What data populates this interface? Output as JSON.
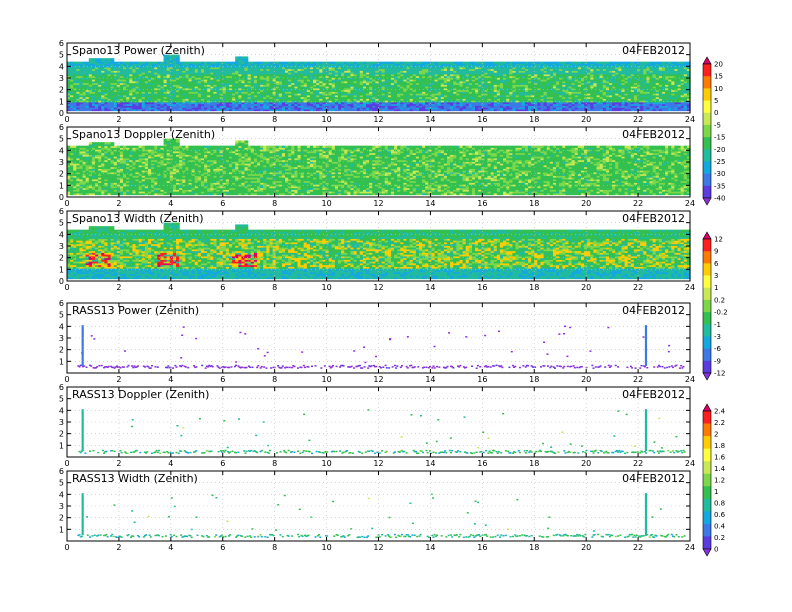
{
  "chart_data": [
    {
      "type": "heatmap",
      "title": "Spano13 Power (Zenith)",
      "date": "04FEB2012",
      "xlim": [
        0,
        24
      ],
      "ylim": [
        0,
        6
      ],
      "x_ticks": [
        "0",
        "2",
        "4",
        "6",
        "8",
        "10",
        "12",
        "14",
        "16",
        "18",
        "20",
        "22",
        "24"
      ],
      "y_ticks": [
        "0",
        "1",
        "2",
        "3",
        "4",
        "5",
        "6"
      ],
      "colorbar": {
        "labels": [
          "20",
          "15",
          "10",
          "5",
          "0",
          "-5",
          "-15",
          "-20",
          "-25",
          "-30",
          "-35",
          "-40"
        ],
        "colors": [
          "#d8006a",
          "#ff1f1f",
          "#ff7a00",
          "#ffcc00",
          "#ffff40",
          "#c8e855",
          "#7cd84a",
          "#33c050",
          "#22bb9e",
          "#14a8e0",
          "#3c78e6",
          "#5a3ce0",
          "#8a32d8"
        ]
      },
      "dominant_range": "-20 to -5",
      "data_top_km": 4.3,
      "data_bottom_km": 0.2,
      "features": [
        "low-power (-30 to -40) band below 1 km",
        "weaker (-15 to -25) band near 3.5 km"
      ]
    },
    {
      "type": "heatmap",
      "title": "Spano13 Doppler (Zenith)",
      "date": "04FEB2012",
      "xlim": [
        0,
        24
      ],
      "ylim": [
        0,
        6
      ],
      "x_ticks": [
        "0",
        "2",
        "4",
        "6",
        "8",
        "10",
        "12",
        "14",
        "16",
        "18",
        "20",
        "22",
        "24"
      ],
      "y_ticks": [
        "0",
        "1",
        "2",
        "3",
        "4",
        "5",
        "6"
      ],
      "colorbar_shared_with": "Spano13 Power (Zenith)",
      "data_top_km": 4.3,
      "data_bottom_km": 0.2
    },
    {
      "type": "heatmap",
      "title": "Spano13 Width (Zenith)",
      "date": "04FEB2012",
      "xlim": [
        0,
        24
      ],
      "ylim": [
        0,
        6
      ],
      "x_ticks": [
        "0",
        "2",
        "4",
        "6",
        "8",
        "10",
        "12",
        "14",
        "16",
        "18",
        "20",
        "22",
        "24"
      ],
      "y_ticks": [
        "0",
        "1",
        "2",
        "3",
        "4",
        "5",
        "6"
      ],
      "colorbar": {
        "labels": [
          "12",
          "9",
          "6",
          "3",
          "1",
          "0.2",
          "-0.2",
          "-1",
          "-3",
          "-6",
          "-9",
          "-12"
        ],
        "colors": [
          "#d8006a",
          "#ff1f1f",
          "#ff7a00",
          "#ffcc00",
          "#ffff40",
          "#c8e855",
          "#7cd84a",
          "#33c050",
          "#22bb9e",
          "#14a8e0",
          "#3c78e6",
          "#5a3ce0",
          "#8a32d8"
        ]
      },
      "data_top_km": 4.3,
      "data_bottom_km": 0.2,
      "features": [
        "high-width (6 to 12) patches near 1-2 km at 1, 4, 6.5-7 h"
      ]
    },
    {
      "type": "scatter",
      "title": "RASS13 Power (Zenith)",
      "date": "04FEB2012",
      "xlim": [
        0,
        24
      ],
      "ylim": [
        0,
        6
      ],
      "x_ticks": [
        "0",
        "2",
        "4",
        "6",
        "8",
        "10",
        "12",
        "14",
        "16",
        "18",
        "20",
        "22",
        "24"
      ],
      "y_ticks": [
        "1",
        "2",
        "3",
        "4",
        "5",
        "6"
      ],
      "colorbar_shared_with": "Spano13 Width (Zenith)",
      "base_height_km": 0.6,
      "vertical_streaks_h": [
        0.6,
        22.3
      ]
    },
    {
      "type": "scatter",
      "title": "RASS13 Doppler (Zenith)",
      "date": "04FEB2012",
      "xlim": [
        0,
        24
      ],
      "ylim": [
        0,
        6
      ],
      "x_ticks": [
        "0",
        "2",
        "4",
        "6",
        "8",
        "10",
        "12",
        "14",
        "16",
        "18",
        "20",
        "22",
        "24"
      ],
      "y_ticks": [
        "1",
        "2",
        "3",
        "4",
        "5",
        "6"
      ],
      "colorbar": {
        "labels": [
          "2.4",
          "2.2",
          "2",
          "1.8",
          "1.6",
          "1.4",
          "1.2",
          "1",
          "0.8",
          "0.6",
          "0.4",
          "0.2",
          "0"
        ],
        "colors": [
          "#d8006a",
          "#ff1f1f",
          "#ff7a00",
          "#ffcc00",
          "#ffff40",
          "#c8e855",
          "#7cd84a",
          "#33c050",
          "#22bb9e",
          "#14a8e0",
          "#3c78e6",
          "#5a3ce0",
          "#8a32d8"
        ]
      },
      "base_height_km": 0.5,
      "vertical_streaks_h": [
        0.6,
        22.3
      ]
    },
    {
      "type": "scatter",
      "title": "RASS13 Width (Zenith)",
      "date": "04FEB2012",
      "xlim": [
        0,
        24
      ],
      "ylim": [
        0,
        6
      ],
      "x_ticks": [
        "0",
        "2",
        "4",
        "6",
        "8",
        "10",
        "12",
        "14",
        "16",
        "18",
        "20",
        "22",
        "24"
      ],
      "y_ticks": [
        "1",
        "2",
        "3",
        "4",
        "5",
        "6"
      ],
      "colorbar_shared_with": "RASS13 Doppler (Zenith)",
      "base_height_km": 0.5,
      "vertical_streaks_h": [
        0.6,
        22.3
      ]
    }
  ]
}
